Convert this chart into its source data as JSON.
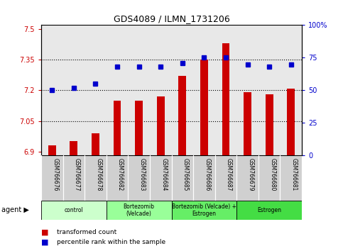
{
  "title": "GDS4089 / ILMN_1731206",
  "samples": [
    "GSM766676",
    "GSM766677",
    "GSM766678",
    "GSM766682",
    "GSM766683",
    "GSM766684",
    "GSM766685",
    "GSM766686",
    "GSM766687",
    "GSM766679",
    "GSM766680",
    "GSM766681"
  ],
  "bar_values": [
    6.93,
    6.95,
    6.99,
    7.15,
    7.15,
    7.17,
    7.27,
    7.35,
    7.43,
    7.19,
    7.18,
    7.21
  ],
  "dot_values": [
    50,
    52,
    55,
    68,
    68,
    68,
    71,
    75,
    75,
    70,
    68,
    70
  ],
  "bar_color": "#cc0000",
  "dot_color": "#0000cc",
  "ylim_left": [
    6.88,
    7.52
  ],
  "ylim_right": [
    0,
    100
  ],
  "yticks_left": [
    6.9,
    7.05,
    7.2,
    7.35,
    7.5
  ],
  "yticks_right": [
    0,
    25,
    50,
    75,
    100
  ],
  "ytick_labels_left": [
    "6.9",
    "7.05",
    "7.2",
    "7.35",
    "7.5"
  ],
  "ytick_labels_right": [
    "0",
    "25",
    "50",
    "75",
    "100%"
  ],
  "hlines": [
    7.05,
    7.2,
    7.35
  ],
  "groups": [
    {
      "label": "control",
      "start": 0,
      "end": 3,
      "color": "#ccffcc"
    },
    {
      "label": "Bortezomib\n(Velcade)",
      "start": 3,
      "end": 6,
      "color": "#99ff99"
    },
    {
      "label": "Bortezomib (Velcade) +\nEstrogen",
      "start": 6,
      "end": 9,
      "color": "#66ee66"
    },
    {
      "label": "Estrogen",
      "start": 9,
      "end": 12,
      "color": "#44dd44"
    }
  ],
  "agent_label": "agent",
  "legend_bar_label": "transformed count",
  "legend_dot_label": "percentile rank within the sample",
  "bar_width": 0.35,
  "plot_bg_color": "#e8e8e8",
  "sample_box_color": "#d0d0d0"
}
